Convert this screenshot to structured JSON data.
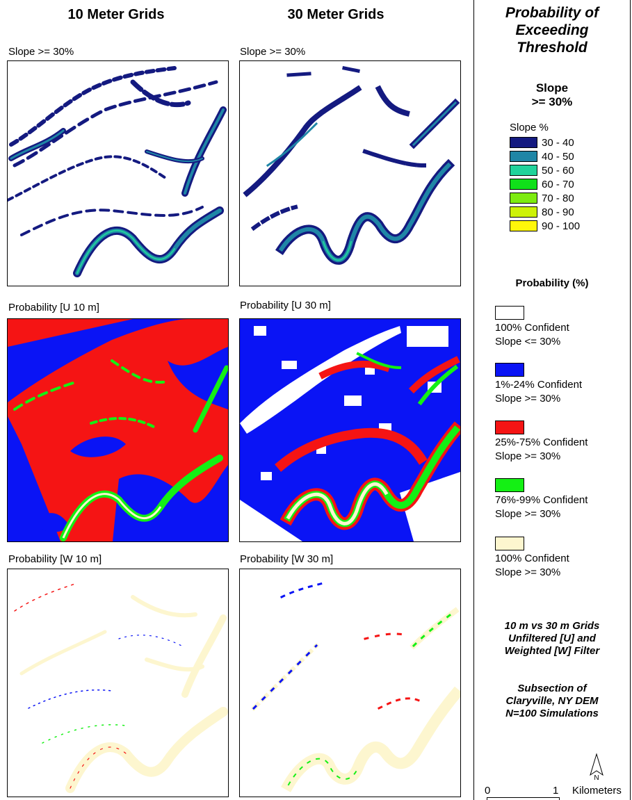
{
  "columns": {
    "left_title": "10 Meter Grids",
    "right_title": "30 Meter Grids"
  },
  "panels": {
    "slope_10": "Slope >= 30%",
    "slope_30": "Slope >= 30%",
    "prob_u10": "Probability [U 10 m]",
    "prob_u30": "Probability [U 30 m]",
    "prob_w10": "Probability [W 10 m]",
    "prob_w30": "Probability [W 30 m]"
  },
  "legend": {
    "title_line1": "Probability of",
    "title_line2": "Exceeding",
    "title_line3": "Threshold",
    "slope_heading_line1": "Slope",
    "slope_heading_line2": ">= 30%",
    "slope_pct_label": "Slope %",
    "slope_classes": [
      {
        "label": "30 - 40",
        "color": "#141a80"
      },
      {
        "label": "40 - 50",
        "color": "#1f86a6"
      },
      {
        "label": "50 - 60",
        "color": "#21d39b"
      },
      {
        "label": "60 - 70",
        "color": "#10e01a"
      },
      {
        "label": "70 - 80",
        "color": "#7dec10"
      },
      {
        "label": "80 - 90",
        "color": "#cdf208"
      },
      {
        "label": "90 - 100",
        "color": "#fff70a"
      }
    ],
    "probability_heading": "Probability (%)",
    "probability_classes": [
      {
        "line1": "100%  Confident",
        "line2": "Slope <= 30%",
        "color": "#ffffff"
      },
      {
        "line1": "1%-24%  Confident",
        "line2": "Slope >= 30%",
        "color": "#0a14f5"
      },
      {
        "line1": "25%-75%  Confident",
        "line2": "Slope >= 30%",
        "color": "#f51414"
      },
      {
        "line1": "76%-99%  Confident",
        "line2": "Slope >= 30%",
        "color": "#14f014"
      },
      {
        "line1": "100%  Confident",
        "line2": "Slope >= 30%",
        "color": "#fdf6cf"
      }
    ],
    "note1_line1": "10 m vs 30 m Grids",
    "note1_line2": "Unfiltered [U] and",
    "note1_line3": "Weighted [W] Filter",
    "note2_line1": "Subsection of",
    "note2_line2": "Claryville, NY DEM",
    "note2_line3": "N=100 Simulations",
    "north_label": "N",
    "scale_zero": "0",
    "scale_one": "1",
    "scale_units": "Kilometers"
  }
}
